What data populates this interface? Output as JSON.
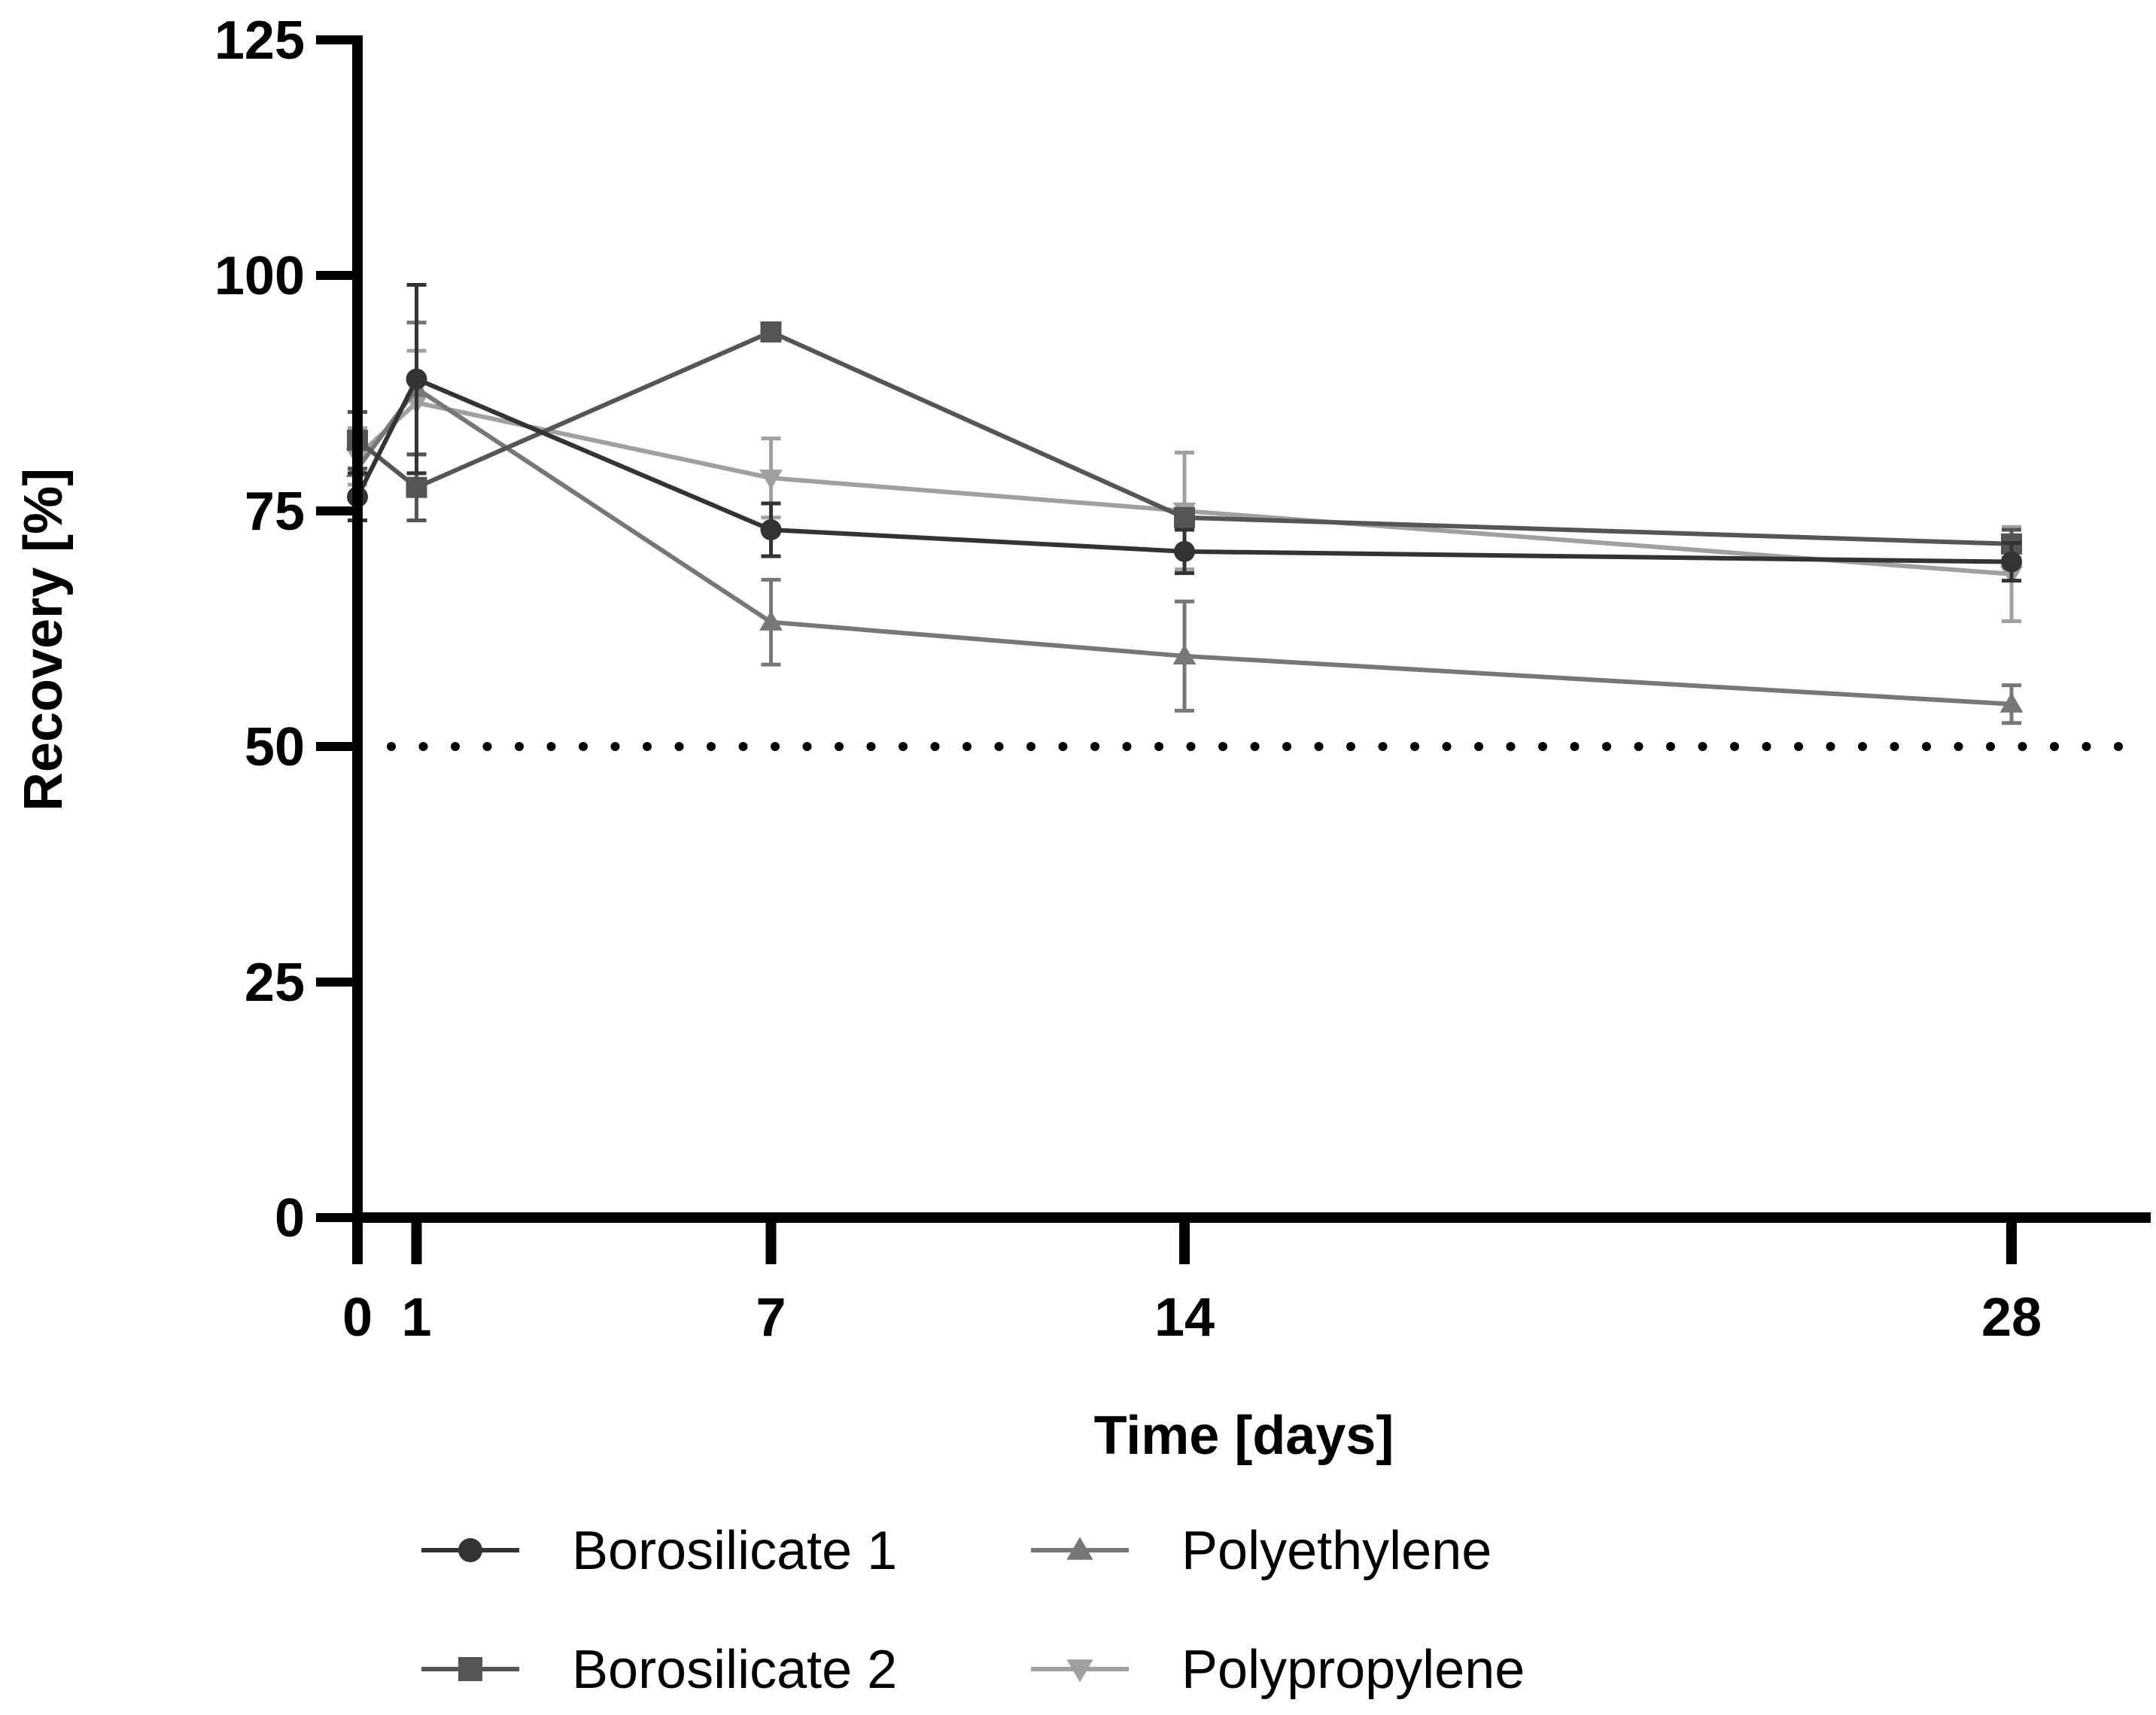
{
  "chart_data": {
    "type": "line",
    "title": "",
    "xlabel": "Time [days]",
    "ylabel": "Recovery [%]",
    "x": [
      0,
      1,
      7,
      14,
      28
    ],
    "xticks": [
      "0",
      "1",
      "7",
      "14",
      "28"
    ],
    "xlim": [
      0,
      30
    ],
    "ylim": [
      0,
      125
    ],
    "yticks": [
      "0",
      "25",
      "50",
      "75",
      "100",
      "125"
    ],
    "reference_line": {
      "y": 50,
      "style": "dotted"
    },
    "legend_position": "bottom",
    "series": [
      {
        "name": "Borosilicate 1",
        "marker": "circle",
        "color": "#333333",
        "values": [
          76.5,
          89,
          73,
          70.7,
          69.6
        ],
        "errors": [
          2.5,
          10,
          2.8,
          2.3,
          2
        ]
      },
      {
        "name": "Borosilicate 2",
        "marker": "square",
        "color": "#555555",
        "values": [
          82.5,
          77.5,
          94,
          74.3,
          71.5
        ],
        "errors": [
          3,
          3.5,
          0.8,
          0.8,
          1.5
        ]
      },
      {
        "name": "Polyethylene",
        "marker": "triangle-up",
        "color": "#777777",
        "values": [
          79.5,
          88,
          63.2,
          59.6,
          54.5
        ],
        "errors": [
          3,
          7,
          4.5,
          5.8,
          2
        ]
      },
      {
        "name": "Polypropylene",
        "marker": "triangle-down",
        "color": "#a0a0a0",
        "values": [
          80.8,
          86.5,
          78.5,
          75,
          68.3
        ],
        "errors": [
          3,
          5.5,
          4.2,
          6.2,
          5
        ]
      }
    ]
  }
}
